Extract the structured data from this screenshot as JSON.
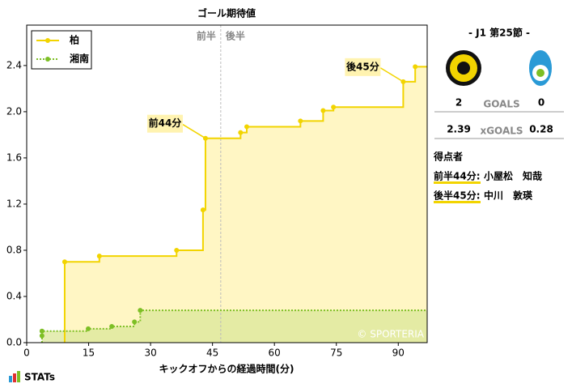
{
  "chart_data": {
    "type": "step",
    "title": "ゴール期待値",
    "xlabel": "キックオフからの経過時間(分)",
    "xlim": [
      0,
      97
    ],
    "ylim": [
      0,
      2.75
    ],
    "xticks": [
      0,
      15,
      30,
      45,
      60,
      75,
      90
    ],
    "yticks": [
      {
        "value": 0,
        "label": "0.0"
      },
      0.4,
      0.8,
      1.2,
      1.6,
      {
        "value": 2,
        "label": "2.0"
      },
      2.4
    ],
    "legend": "upper left",
    "series": [
      {
        "name": "柏",
        "color": "#f2d400",
        "fill": "#fff3b0",
        "x": [
          9.2,
          17.6,
          36.3,
          42.7,
          43.3,
          51.8,
          53.3,
          66.3,
          71.8,
          74.3,
          91.2,
          94.1
        ],
        "values": [
          0.7,
          0.75,
          0.8,
          1.15,
          1.77,
          1.82,
          1.87,
          1.92,
          2.01,
          2.04,
          2.26,
          2.39
        ]
      },
      {
        "name": "湘南",
        "color": "#7dbf25",
        "fill": "#dbe79a",
        "x": [
          3.7,
          3.7,
          14.9,
          20.6,
          26.1,
          27.5
        ],
        "values": [
          0.06,
          0.1,
          0.12,
          0.14,
          0.18,
          0.28
        ]
      }
    ],
    "halftime": {
      "x": 47,
      "labels": [
        "前半",
        "後半"
      ]
    },
    "annotations": [
      {
        "text": "前44分",
        "x": 43.3,
        "y": 1.77
      },
      {
        "text": "後45分",
        "x": 91.2,
        "y": 2.26
      }
    ],
    "watermark": "© SPORTERIA"
  },
  "panel": {
    "round": "- J1 第25節 -",
    "goals": {
      "home": 2,
      "label": "GOALS",
      "away": 0
    },
    "xgoals": {
      "home": 2.39,
      "label": "xGOALS",
      "away": 0.28
    },
    "scorers_title": "得点者",
    "scorers": [
      {
        "time": "前半44分:",
        "name": "小屋松　知哉"
      },
      {
        "time": "後半45分:",
        "name": "中川　敦瑛"
      }
    ]
  },
  "logo": "STATs"
}
